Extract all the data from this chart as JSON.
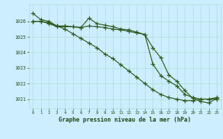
{
  "x": [
    0,
    1,
    2,
    3,
    4,
    5,
    6,
    7,
    8,
    9,
    10,
    11,
    12,
    13,
    14,
    15,
    16,
    17,
    18,
    19,
    20,
    21,
    22,
    23
  ],
  "line1": [
    1026.5,
    1026.1,
    1026.0,
    1025.7,
    1025.5,
    1025.2,
    1024.9,
    1024.6,
    1024.3,
    1023.9,
    1023.6,
    1023.2,
    1022.8,
    1022.4,
    1022.0,
    1021.6,
    1021.3,
    1021.1,
    1021.0,
    1020.9,
    1020.9,
    1021.0,
    1021.0,
    1021.0
  ],
  "line2": [
    1026.0,
    1026.0,
    1025.9,
    1025.7,
    1025.7,
    1025.65,
    1025.6,
    1026.2,
    1025.85,
    1025.75,
    1025.65,
    1025.5,
    1025.45,
    1025.3,
    1025.15,
    1024.3,
    1023.65,
    1022.55,
    1022.15,
    1021.55,
    1021.05,
    1020.85,
    1020.75,
    1021.05
  ],
  "line3": [
    1026.0,
    1026.0,
    1025.85,
    1025.65,
    1025.65,
    1025.65,
    1025.6,
    1025.7,
    1025.65,
    1025.6,
    1025.5,
    1025.45,
    1025.35,
    1025.25,
    1025.15,
    1023.25,
    1022.5,
    1022.15,
    1021.85,
    1021.3,
    1021.1,
    1021.0,
    1021.0,
    1021.1
  ],
  "bg_color": "#cceeff",
  "grid_color": "#aaddcc",
  "line_color": "#2d5a1b",
  "xlabel": "Graphe pression niveau de la mer (hPa)",
  "xlabel_color": "#1a4a10",
  "tick_color": "#1a4a10",
  "ylim": [
    1020.4,
    1027.1
  ],
  "yticks": [
    1021,
    1022,
    1023,
    1024,
    1025,
    1026
  ],
  "xticks": [
    0,
    1,
    2,
    3,
    4,
    5,
    6,
    7,
    8,
    9,
    10,
    11,
    12,
    13,
    14,
    15,
    16,
    17,
    18,
    19,
    20,
    21,
    22,
    23
  ]
}
